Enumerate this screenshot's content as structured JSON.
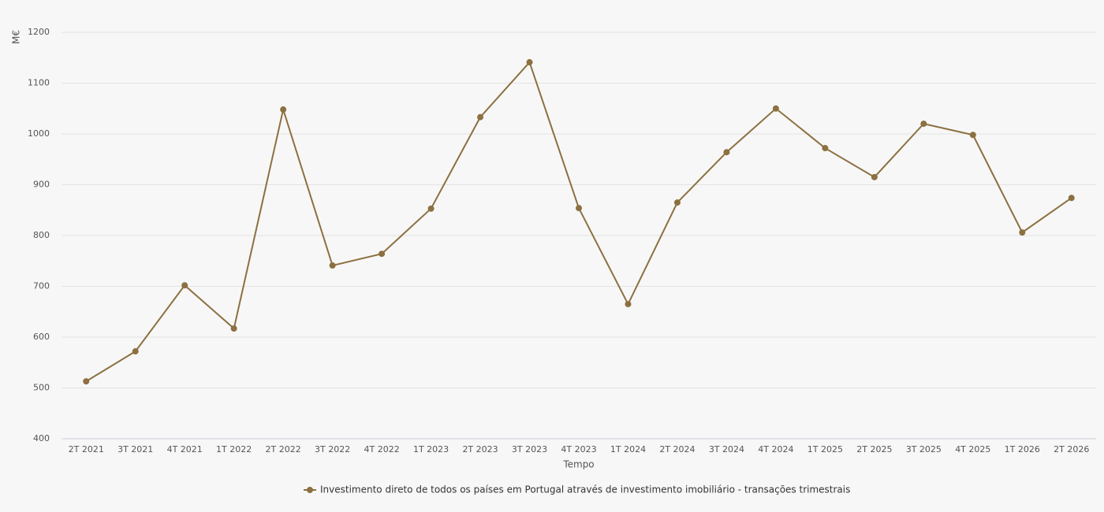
{
  "chart_data": {
    "type": "line",
    "y_label": "M€",
    "x_label": "Tempo",
    "categories": [
      "2T 2021",
      "3T 2021",
      "4T 2021",
      "1T 2022",
      "2T 2022",
      "3T 2022",
      "4T 2022",
      "1T 2023",
      "2T 2023",
      "3T 2023",
      "4T 2023",
      "1T 2024",
      "2T 2024",
      "3T 2024",
      "4T 2024",
      "1T 2025",
      "2T 2025",
      "3T 2025",
      "4T 2025",
      "1T 2026",
      "2T 2026"
    ],
    "series": [
      {
        "name": "Investimento direto de todos os países em Portugal através de investimento imobiliário - transações trimestrais",
        "color": "#8c7040",
        "values": [
          513,
          572,
          702,
          617,
          1048,
          741,
          764,
          853,
          1033,
          1141,
          854,
          665,
          865,
          964,
          1050,
          972,
          915,
          1020,
          998,
          806,
          874
        ]
      }
    ],
    "ylim": [
      400,
      1200
    ],
    "yticks": [
      400,
      500,
      600,
      700,
      800,
      900,
      1000,
      1100,
      1200
    ],
    "grid": true,
    "legend": "bottom"
  }
}
